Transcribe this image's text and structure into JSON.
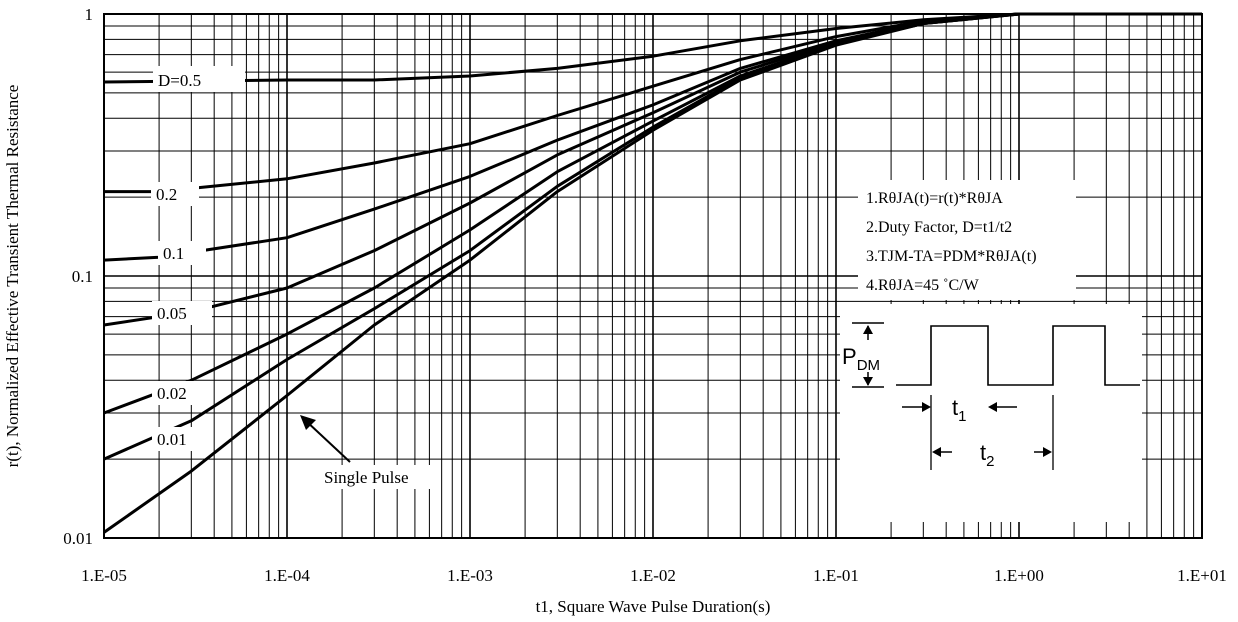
{
  "chart_data": {
    "type": "line",
    "title": "",
    "xlabel": "t1, Square Wave Pulse Duration(s)",
    "ylabel": "r(t), Normalized Effective Transient Thermal Resistance",
    "xscale": "log",
    "yscale": "log",
    "xlim": [
      1e-05,
      10
    ],
    "ylim": [
      0.01,
      1
    ],
    "grid": true,
    "x_tick_labels": [
      "1.E-05",
      "1.E-04",
      "1.E-03",
      "1.E-02",
      "1.E-01",
      "1.E+00",
      "1.E+01"
    ],
    "y_tick_labels": [
      "0.01",
      "0.1",
      "1"
    ],
    "series": [
      {
        "name": "D=0.5",
        "x": [
          1e-05,
          0.0001,
          0.0003,
          0.001,
          0.003,
          0.01,
          0.03,
          0.1,
          0.3,
          1,
          10
        ],
        "y": [
          0.55,
          0.56,
          0.56,
          0.58,
          0.62,
          0.69,
          0.79,
          0.88,
          0.95,
          1.0,
          1.0
        ]
      },
      {
        "name": "0.2",
        "x": [
          1e-05,
          2e-05,
          0.0001,
          0.0003,
          0.001,
          0.003,
          0.01,
          0.03,
          0.1,
          0.3,
          1,
          10
        ],
        "y": [
          0.21,
          0.21,
          0.235,
          0.27,
          0.32,
          0.41,
          0.53,
          0.67,
          0.82,
          0.94,
          1.0,
          1.0
        ]
      },
      {
        "name": "0.1",
        "x": [
          1e-05,
          2e-05,
          0.0001,
          0.0003,
          0.001,
          0.003,
          0.01,
          0.03,
          0.1,
          0.3,
          1,
          10
        ],
        "y": [
          0.115,
          0.118,
          0.14,
          0.18,
          0.24,
          0.33,
          0.45,
          0.62,
          0.79,
          0.93,
          1.0,
          1.0
        ]
      },
      {
        "name": "0.05",
        "x": [
          1e-05,
          3e-05,
          0.0001,
          0.0003,
          0.001,
          0.003,
          0.01,
          0.03,
          0.1,
          0.3,
          1,
          10
        ],
        "y": [
          0.065,
          0.073,
          0.09,
          0.125,
          0.19,
          0.29,
          0.42,
          0.6,
          0.78,
          0.93,
          1.0,
          1.0
        ]
      },
      {
        "name": "0.02",
        "x": [
          1e-05,
          3e-05,
          0.0001,
          0.0003,
          0.001,
          0.003,
          0.01,
          0.03,
          0.1,
          0.3,
          1,
          10
        ],
        "y": [
          0.03,
          0.04,
          0.06,
          0.09,
          0.15,
          0.25,
          0.39,
          0.58,
          0.77,
          0.92,
          1.0,
          1.0
        ]
      },
      {
        "name": "0.01",
        "x": [
          1e-05,
          3e-05,
          0.0001,
          0.0003,
          0.001,
          0.003,
          0.01,
          0.03,
          0.1,
          0.3,
          1,
          10
        ],
        "y": [
          0.02,
          0.028,
          0.048,
          0.075,
          0.125,
          0.22,
          0.37,
          0.57,
          0.77,
          0.92,
          1.0,
          1.0
        ]
      },
      {
        "name": "Single Pulse",
        "x": [
          1e-05,
          3e-05,
          0.0001,
          0.0003,
          0.001,
          0.003,
          0.01,
          0.03,
          0.1,
          0.3,
          1,
          10
        ],
        "y": [
          0.0105,
          0.018,
          0.035,
          0.065,
          0.115,
          0.21,
          0.36,
          0.56,
          0.76,
          0.92,
          1.0,
          1.0
        ]
      }
    ],
    "annotations": {
      "notes": [
        "1.RθJA(t)=r(t)*RθJA",
        "2.Duty Factor, D=t1/t2",
        "3.TJM-TA=PDM*RθJA(t)",
        "4.RθJA=45 ˚C/W"
      ],
      "waveform": {
        "pdm": "P",
        "pdm_sub": "DM",
        "t1": "t",
        "t1_sub": "1",
        "t2": "t",
        "t2_sub": "2"
      }
    }
  }
}
